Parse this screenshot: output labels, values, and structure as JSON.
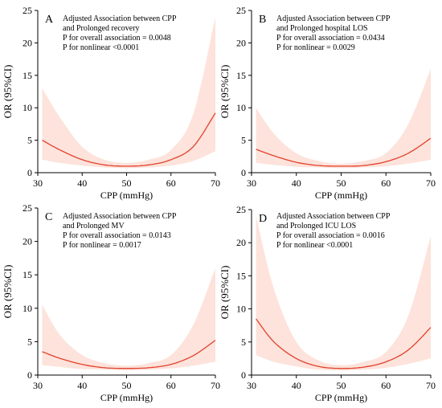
{
  "chart_data": [
    {
      "type": "line",
      "panel_letter": "A",
      "annotations": [
        "Adjusted Association between CPP",
        "and Prolonged recovery",
        "P for overall association = 0.0048",
        "P for nonlinear  <0.0001"
      ],
      "xlabel": "CPP (mmHg)",
      "ylabel": "OR (95%CI)",
      "xlim": [
        30,
        70
      ],
      "ylim": [
        0,
        25
      ],
      "xticks": [
        30,
        40,
        50,
        60,
        70
      ],
      "yticks": [
        0,
        5,
        10,
        15,
        20,
        25
      ],
      "grid": false,
      "series": [
        {
          "x": [
            31,
            35,
            40,
            45,
            50,
            55,
            60,
            65,
            70
          ],
          "or": [
            5.0,
            3.5,
            2.0,
            1.2,
            1.0,
            1.2,
            2.0,
            4.0,
            9.2
          ],
          "ci_lower": [
            2.0,
            1.5,
            1.1,
            0.8,
            0.7,
            0.8,
            1.1,
            1.8,
            3.3
          ],
          "ci_upper": [
            13.0,
            8.5,
            4.0,
            2.0,
            1.5,
            2.0,
            3.5,
            9.0,
            24.0
          ]
        }
      ]
    },
    {
      "type": "line",
      "panel_letter": "B",
      "annotations": [
        "Adjusted Association between CPP",
        "and Prolonged hospital  LOS",
        "P for overall association = 0.0434",
        "P for nonlinear  = 0.0029"
      ],
      "xlabel": "CPP (mmHg)",
      "ylabel": "OR (95%CI)",
      "xlim": [
        30,
        70
      ],
      "ylim": [
        0,
        25
      ],
      "xticks": [
        30,
        40,
        50,
        60,
        70
      ],
      "yticks": [
        0,
        5,
        10,
        15,
        20,
        25
      ],
      "grid": false,
      "series": [
        {
          "x": [
            31,
            35,
            40,
            45,
            50,
            55,
            60,
            65,
            70
          ],
          "or": [
            3.6,
            2.6,
            1.6,
            1.1,
            1.0,
            1.1,
            1.7,
            3.0,
            5.3
          ],
          "ci_lower": [
            1.5,
            1.2,
            0.9,
            0.8,
            0.7,
            0.8,
            1.0,
            1.4,
            2.0
          ],
          "ci_upper": [
            10.0,
            6.0,
            3.0,
            1.8,
            1.4,
            1.8,
            3.0,
            7.5,
            16.0
          ]
        }
      ]
    },
    {
      "type": "line",
      "panel_letter": "C",
      "annotations": [
        "Adjusted Association between CPP",
        "and Prolonged MV",
        "P for overall association = 0.0143",
        "P for nonlinear  = 0.0017"
      ],
      "xlabel": "CPP (mmHg)",
      "ylabel": "OR (95%CI)",
      "xlim": [
        30,
        70
      ],
      "ylim": [
        0,
        25
      ],
      "xticks": [
        30,
        40,
        50,
        60,
        70
      ],
      "yticks": [
        0,
        5,
        10,
        15,
        20,
        25
      ],
      "grid": false,
      "series": [
        {
          "x": [
            31,
            35,
            40,
            45,
            50,
            55,
            60,
            65,
            70
          ],
          "or": [
            3.5,
            2.5,
            1.6,
            1.1,
            1.0,
            1.1,
            1.6,
            2.9,
            5.2
          ],
          "ci_lower": [
            1.5,
            1.2,
            0.9,
            0.8,
            0.7,
            0.8,
            1.0,
            1.4,
            2.0
          ],
          "ci_upper": [
            10.5,
            6.0,
            3.0,
            1.8,
            1.4,
            1.8,
            3.0,
            7.5,
            16.0
          ]
        }
      ]
    },
    {
      "type": "line",
      "panel_letter": "D",
      "annotations": [
        "Adjusted Association between CPP",
        "and Prolonged ICU LOS",
        "P for overall association = 0.0016",
        "P for nonlinear  <0.0001"
      ],
      "xlabel": "CPP (mmHg)",
      "ylabel": "OR (95%CI)",
      "xlim": [
        30,
        70
      ],
      "ylim": [
        0,
        25
      ],
      "xticks": [
        30,
        40,
        50,
        60,
        70
      ],
      "yticks": [
        0,
        5,
        10,
        15,
        20,
        25
      ],
      "grid": false,
      "series": [
        {
          "x": [
            31,
            35,
            40,
            45,
            50,
            55,
            60,
            65,
            70
          ],
          "or": [
            8.5,
            5.0,
            2.5,
            1.3,
            1.0,
            1.2,
            2.0,
            3.8,
            7.2
          ],
          "ci_lower": [
            3.0,
            2.0,
            1.3,
            0.8,
            0.7,
            0.8,
            1.1,
            1.7,
            2.5
          ],
          "ci_upper": [
            24.0,
            13.0,
            5.0,
            2.2,
            1.5,
            2.0,
            3.5,
            9.0,
            21.0
          ]
        }
      ]
    }
  ],
  "colors": {
    "curve": "#e2412c",
    "band": "#fde3db",
    "axis": "#000000"
  }
}
